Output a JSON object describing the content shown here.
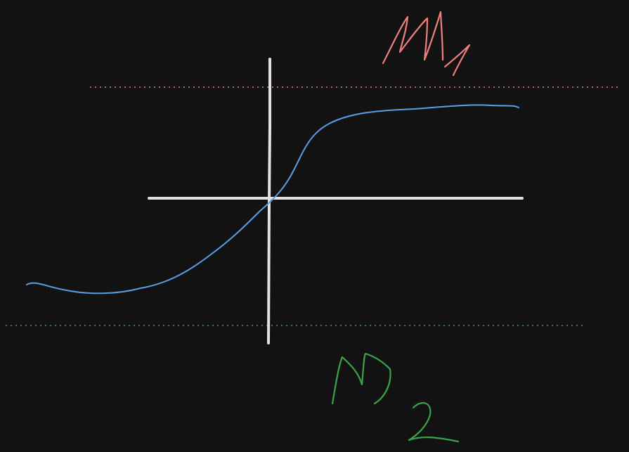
{
  "figure": {
    "curve_color": "#5a9fe6",
    "axis_color": "#e2e2e2",
    "background_color": "#121212"
  },
  "bounds": {
    "upper": {
      "label": "M₁",
      "color": "#f08080"
    },
    "lower": {
      "label": "M₂",
      "color": "#3aa34c"
    }
  }
}
